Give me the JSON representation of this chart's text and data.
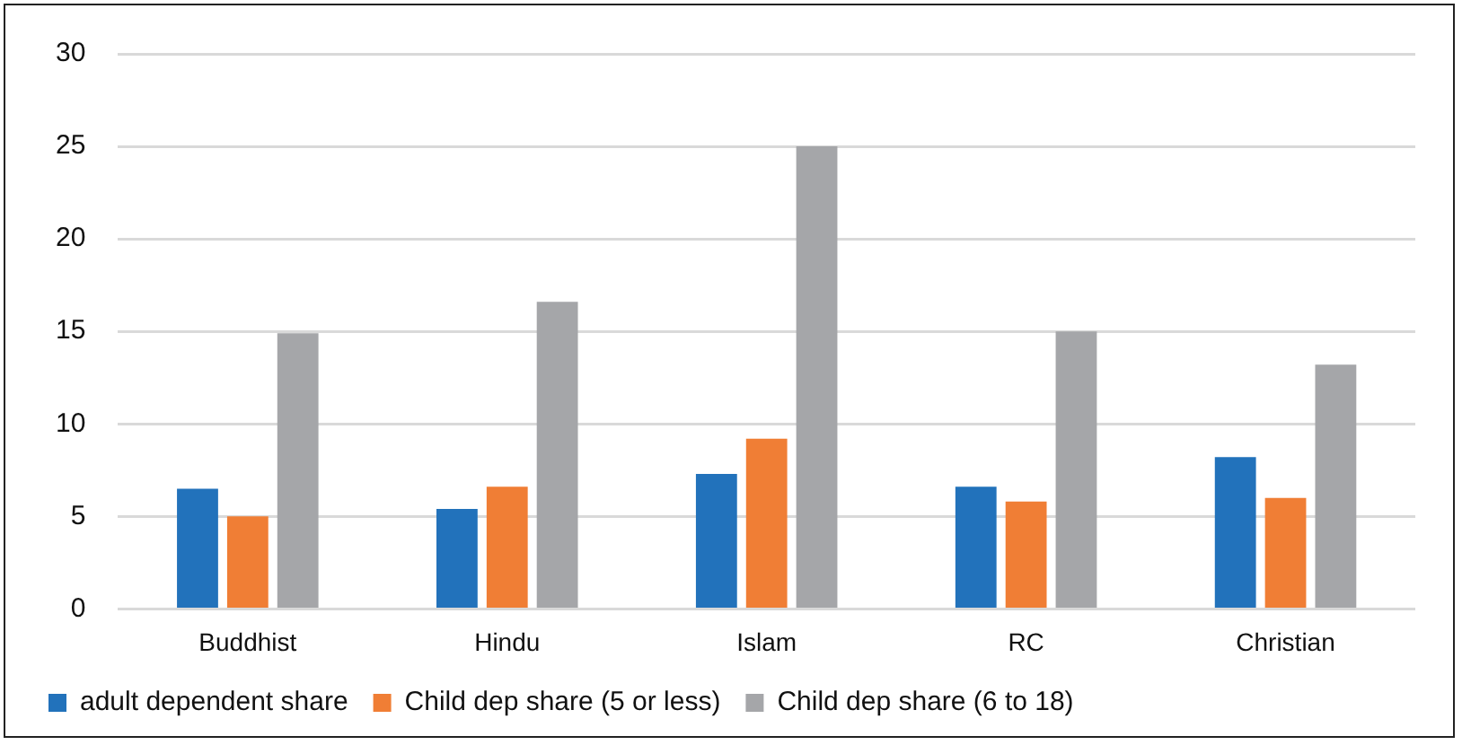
{
  "chart_data": {
    "type": "bar",
    "categories": [
      "Buddhist",
      "Hindu",
      "Islam",
      "RC",
      "Christian"
    ],
    "series": [
      {
        "name": "adult dependent share",
        "color": "#2272bb",
        "values": [
          6.5,
          5.4,
          7.3,
          6.6,
          8.2
        ]
      },
      {
        "name": "Child dep share (5 or less)",
        "color": "#f07e35",
        "values": [
          5.0,
          6.6,
          9.2,
          5.8,
          6.0
        ]
      },
      {
        "name": "Child dep share (6 to 18)",
        "color": "#a5a6a9",
        "values": [
          14.9,
          16.6,
          25.0,
          15.0,
          13.2
        ]
      }
    ],
    "ylim": [
      0,
      30
    ],
    "yticks": [
      0,
      5,
      10,
      15,
      20,
      25,
      30
    ],
    "grid": "y",
    "legend": "bottom"
  }
}
